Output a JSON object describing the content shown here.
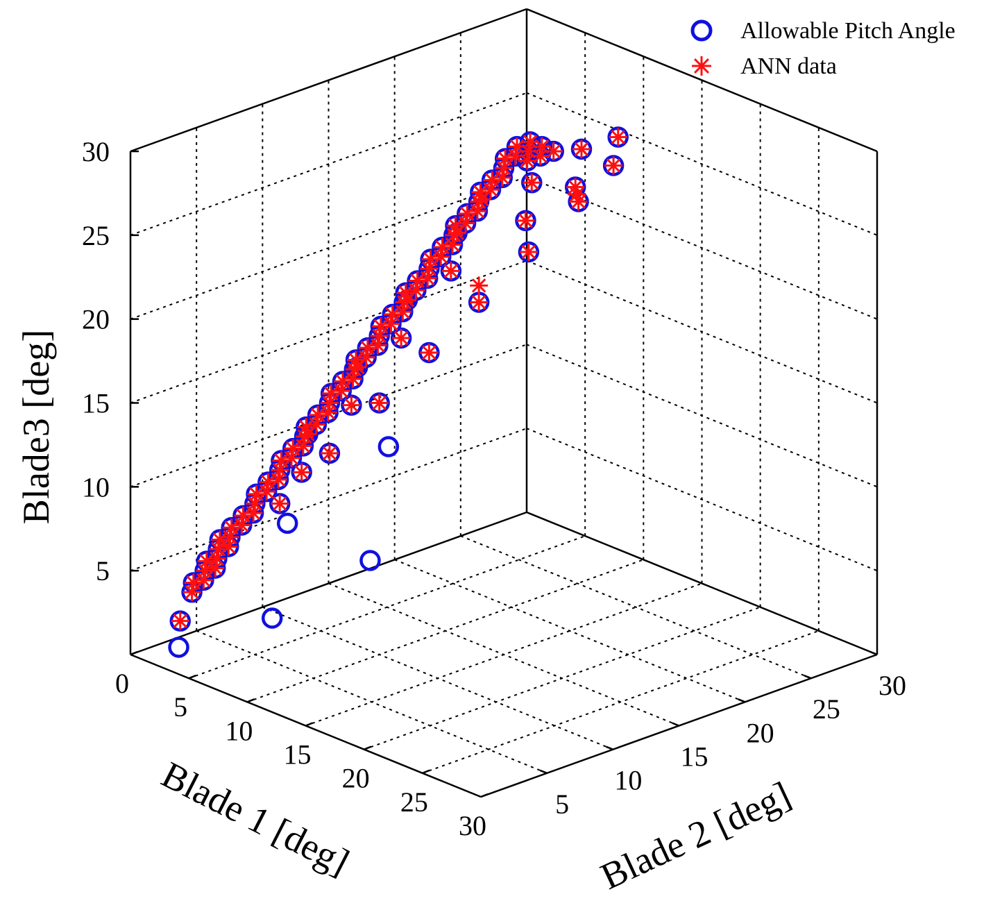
{
  "chart_data": {
    "type": "scatter",
    "xlabel": "Blade 1 [deg]",
    "ylabel": "Blade 2 [deg]",
    "zlabel": "Blade3 [deg]",
    "xlim": [
      0,
      30
    ],
    "ylim": [
      0,
      30
    ],
    "zlim": [
      0,
      30
    ],
    "xticks": [
      0,
      5,
      10,
      15,
      20,
      25,
      30
    ],
    "yticks": [
      5,
      10,
      15,
      20,
      25,
      30
    ],
    "zticks": [
      5,
      10,
      15,
      20,
      25,
      30
    ],
    "grid": true,
    "legend_position": "top-right",
    "series": [
      {
        "name": "Allowable Pitch Angle",
        "marker": "circle",
        "color": "#1010e0",
        "points": [
          [
            2,
            2,
            2
          ],
          [
            3,
            2,
            4
          ],
          [
            2,
            3,
            4
          ],
          [
            3,
            3,
            5
          ],
          [
            4,
            2,
            5
          ],
          [
            2,
            4,
            5
          ],
          [
            3,
            4,
            6
          ],
          [
            4,
            3,
            6
          ],
          [
            4,
            4,
            7
          ],
          [
            5,
            2,
            6
          ],
          [
            2,
            5,
            6
          ],
          [
            5,
            3,
            7
          ],
          [
            3,
            5,
            7
          ],
          [
            5,
            4,
            8
          ],
          [
            4,
            5,
            8
          ],
          [
            5,
            5,
            9
          ],
          [
            6,
            4,
            9
          ],
          [
            4,
            6,
            9
          ],
          [
            6,
            5,
            10
          ],
          [
            5,
            6,
            10
          ],
          [
            6,
            6,
            11
          ],
          [
            7,
            5,
            11
          ],
          [
            5,
            7,
            11
          ],
          [
            7,
            6,
            12
          ],
          [
            6,
            7,
            12
          ],
          [
            7,
            7,
            13
          ],
          [
            8,
            6,
            13
          ],
          [
            6,
            8,
            13
          ],
          [
            8,
            7,
            14
          ],
          [
            7,
            8,
            14
          ],
          [
            8,
            8,
            15
          ],
          [
            9,
            7,
            15
          ],
          [
            7,
            9,
            15
          ],
          [
            9,
            8,
            16
          ],
          [
            8,
            9,
            16
          ],
          [
            9,
            9,
            17
          ],
          [
            10,
            8,
            17
          ],
          [
            8,
            10,
            17
          ],
          [
            10,
            9,
            18
          ],
          [
            9,
            10,
            18
          ],
          [
            10,
            10,
            19
          ],
          [
            11,
            9,
            19
          ],
          [
            9,
            11,
            19
          ],
          [
            11,
            10,
            20
          ],
          [
            10,
            11,
            20
          ],
          [
            11,
            11,
            21
          ],
          [
            12,
            10,
            21
          ],
          [
            10,
            12,
            21
          ],
          [
            12,
            11,
            22
          ],
          [
            11,
            12,
            22
          ],
          [
            12,
            12,
            23
          ],
          [
            13,
            11,
            23
          ],
          [
            11,
            13,
            23
          ],
          [
            13,
            12,
            24
          ],
          [
            12,
            13,
            24
          ],
          [
            13,
            13,
            25
          ],
          [
            14,
            12,
            25
          ],
          [
            12,
            14,
            25
          ],
          [
            14,
            13,
            26
          ],
          [
            13,
            14,
            26
          ],
          [
            14,
            14,
            27
          ],
          [
            15,
            13,
            27
          ],
          [
            13,
            15,
            27
          ],
          [
            15,
            14,
            28
          ],
          [
            14,
            15,
            28
          ],
          [
            15,
            15,
            29
          ],
          [
            16,
            14,
            29
          ],
          [
            14,
            16,
            29
          ],
          [
            16,
            15,
            30
          ],
          [
            15,
            16,
            30
          ],
          [
            16,
            16,
            30
          ],
          [
            17,
            15,
            30
          ],
          [
            15,
            17,
            30
          ],
          [
            17,
            16,
            30
          ],
          [
            16,
            17,
            30
          ],
          [
            17,
            17,
            30
          ],
          [
            6,
            6,
            9
          ],
          [
            8,
            8,
            12
          ],
          [
            10,
            10,
            15
          ],
          [
            12,
            12,
            18
          ],
          [
            14,
            14,
            21
          ],
          [
            16,
            16,
            24
          ],
          [
            18,
            18,
            27
          ],
          [
            9,
            5,
            12
          ],
          [
            5,
            9,
            12
          ],
          [
            11,
            7,
            16
          ],
          [
            7,
            11,
            16
          ],
          [
            13,
            9,
            20
          ],
          [
            9,
            13,
            20
          ],
          [
            15,
            11,
            24
          ],
          [
            11,
            15,
            24
          ],
          [
            18,
            14,
            27
          ],
          [
            14,
            18,
            27
          ],
          [
            20,
            16,
            29
          ],
          [
            16,
            20,
            29
          ],
          [
            21,
            18,
            30
          ],
          [
            18,
            21,
            30
          ],
          [
            3,
            1,
            1
          ],
          [
            11,
            1,
            5
          ],
          [
            1,
            11,
            5
          ],
          [
            16,
            4,
            9
          ],
          [
            4,
            16,
            9
          ]
        ]
      },
      {
        "name": "ANN data",
        "marker": "star",
        "color": "#ff1010",
        "points": [
          [
            2,
            2,
            2
          ],
          [
            3,
            2,
            4
          ],
          [
            2,
            3,
            4
          ],
          [
            3,
            3,
            5
          ],
          [
            4,
            2,
            5
          ],
          [
            2,
            4,
            5
          ],
          [
            3,
            4,
            6
          ],
          [
            4,
            3,
            6
          ],
          [
            4,
            4,
            7
          ],
          [
            5,
            2,
            6
          ],
          [
            2,
            5,
            6
          ],
          [
            5,
            3,
            7
          ],
          [
            3,
            5,
            7
          ],
          [
            5,
            4,
            8
          ],
          [
            4,
            5,
            8
          ],
          [
            5,
            5,
            9
          ],
          [
            6,
            4,
            9
          ],
          [
            4,
            6,
            9
          ],
          [
            6,
            5,
            10
          ],
          [
            5,
            6,
            10
          ],
          [
            6,
            6,
            11
          ],
          [
            7,
            5,
            11
          ],
          [
            5,
            7,
            11
          ],
          [
            7,
            6,
            12
          ],
          [
            6,
            7,
            12
          ],
          [
            7,
            7,
            13
          ],
          [
            8,
            6,
            13
          ],
          [
            6,
            8,
            13
          ],
          [
            8,
            7,
            14
          ],
          [
            7,
            8,
            14
          ],
          [
            8,
            8,
            15
          ],
          [
            9,
            7,
            15
          ],
          [
            7,
            9,
            15
          ],
          [
            9,
            8,
            16
          ],
          [
            8,
            9,
            16
          ],
          [
            9,
            9,
            17
          ],
          [
            10,
            8,
            17
          ],
          [
            8,
            10,
            17
          ],
          [
            10,
            9,
            18
          ],
          [
            9,
            10,
            18
          ],
          [
            10,
            10,
            19
          ],
          [
            11,
            9,
            19
          ],
          [
            9,
            11,
            19
          ],
          [
            11,
            10,
            20
          ],
          [
            10,
            11,
            20
          ],
          [
            11,
            11,
            21
          ],
          [
            12,
            10,
            21
          ],
          [
            10,
            12,
            21
          ],
          [
            12,
            11,
            22
          ],
          [
            11,
            12,
            22
          ],
          [
            12,
            12,
            23
          ],
          [
            13,
            11,
            23
          ],
          [
            11,
            13,
            23
          ],
          [
            13,
            12,
            24
          ],
          [
            12,
            13,
            24
          ],
          [
            13,
            13,
            25
          ],
          [
            14,
            12,
            25
          ],
          [
            12,
            14,
            25
          ],
          [
            14,
            13,
            26
          ],
          [
            13,
            14,
            26
          ],
          [
            14,
            14,
            27
          ],
          [
            15,
            13,
            27
          ],
          [
            13,
            15,
            27
          ],
          [
            15,
            14,
            28
          ],
          [
            14,
            15,
            28
          ],
          [
            15,
            15,
            29
          ],
          [
            16,
            14,
            29
          ],
          [
            14,
            16,
            29
          ],
          [
            16,
            15,
            30
          ],
          [
            15,
            16,
            30
          ],
          [
            16,
            16,
            30
          ],
          [
            17,
            15,
            30
          ],
          [
            15,
            17,
            30
          ],
          [
            17,
            16,
            30
          ],
          [
            16,
            17,
            30
          ],
          [
            17,
            17,
            30
          ],
          [
            6,
            6,
            9
          ],
          [
            8,
            8,
            12
          ],
          [
            10,
            10,
            15
          ],
          [
            12,
            12,
            18
          ],
          [
            14,
            14,
            21
          ],
          [
            16,
            16,
            24
          ],
          [
            18,
            18,
            27
          ],
          [
            9,
            5,
            12
          ],
          [
            5,
            9,
            12
          ],
          [
            11,
            7,
            16
          ],
          [
            7,
            11,
            16
          ],
          [
            13,
            9,
            20
          ],
          [
            9,
            13,
            20
          ],
          [
            15,
            11,
            24
          ],
          [
            11,
            15,
            24
          ],
          [
            18,
            14,
            27
          ],
          [
            14,
            18,
            27
          ],
          [
            20,
            16,
            29
          ],
          [
            16,
            20,
            29
          ],
          [
            21,
            18,
            30
          ],
          [
            18,
            21,
            30
          ],
          [
            14,
            14,
            22
          ],
          [
            19,
            17,
            28
          ],
          [
            12,
            16,
            26
          ]
        ]
      }
    ]
  }
}
